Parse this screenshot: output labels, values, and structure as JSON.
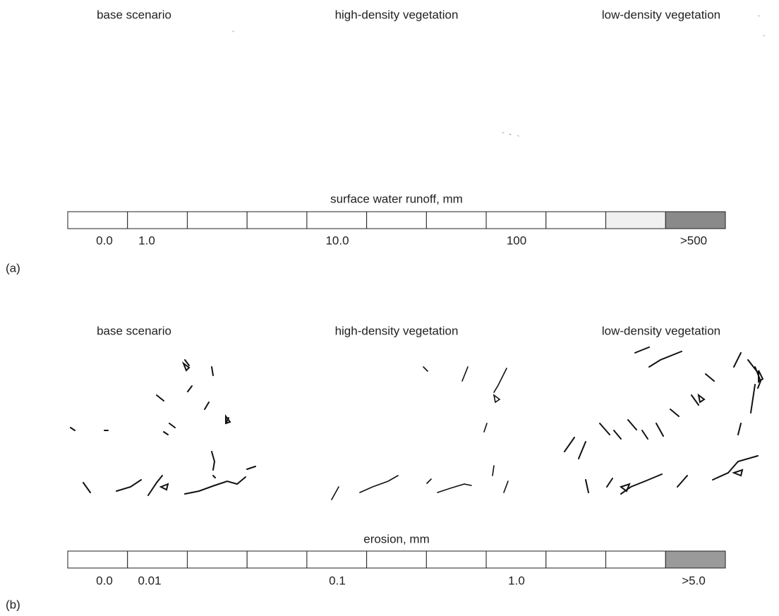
{
  "panels": [
    {
      "label": "(a)",
      "titles": [
        "base scenario",
        "high-density vegetation",
        "low-density vegetation"
      ],
      "legend": {
        "title": "surface water runoff, mm",
        "labels": [
          "0.0",
          "1.0",
          "10.0",
          "100",
          ">500"
        ]
      }
    },
    {
      "label": "(b)",
      "titles": [
        "base scenario",
        "high-density vegetation",
        "low-density vegetation"
      ],
      "legend": {
        "title": "erosion, mm",
        "labels": [
          "0.0",
          "0.01",
          "0.1",
          "1.0",
          ">5.0"
        ]
      }
    }
  ]
}
